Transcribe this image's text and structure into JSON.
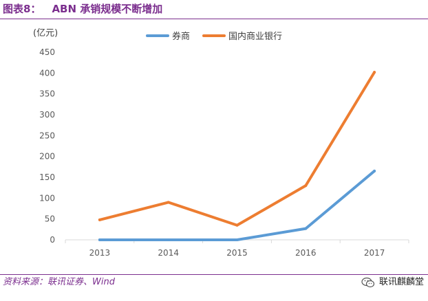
{
  "figure": {
    "label": "图表8：",
    "title": "ABN 承销规模不断增加"
  },
  "source": "资料来源：联讯证券、Wind",
  "watermark": {
    "text": "联讯麒麟堂",
    "icon": "wechat-icon"
  },
  "colors": {
    "title": "#7b2e8e",
    "axis": "#d9d9d9",
    "text": "#595959"
  },
  "chart_data": {
    "type": "line",
    "unit_label": "(亿元)",
    "categories": [
      "2013",
      "2014",
      "2015",
      "2016",
      "2017"
    ],
    "ylim": [
      0,
      450
    ],
    "yticks": [
      0,
      50,
      100,
      150,
      200,
      250,
      300,
      350,
      400,
      450
    ],
    "grid": false,
    "legend_position": "top",
    "series": [
      {
        "name": "券商",
        "color": "#5b9bd5",
        "values": [
          0,
          0,
          0,
          27,
          165
        ]
      },
      {
        "name": "国内商业银行",
        "color": "#ed7d31",
        "values": [
          48,
          90,
          35,
          130,
          402
        ]
      }
    ]
  }
}
